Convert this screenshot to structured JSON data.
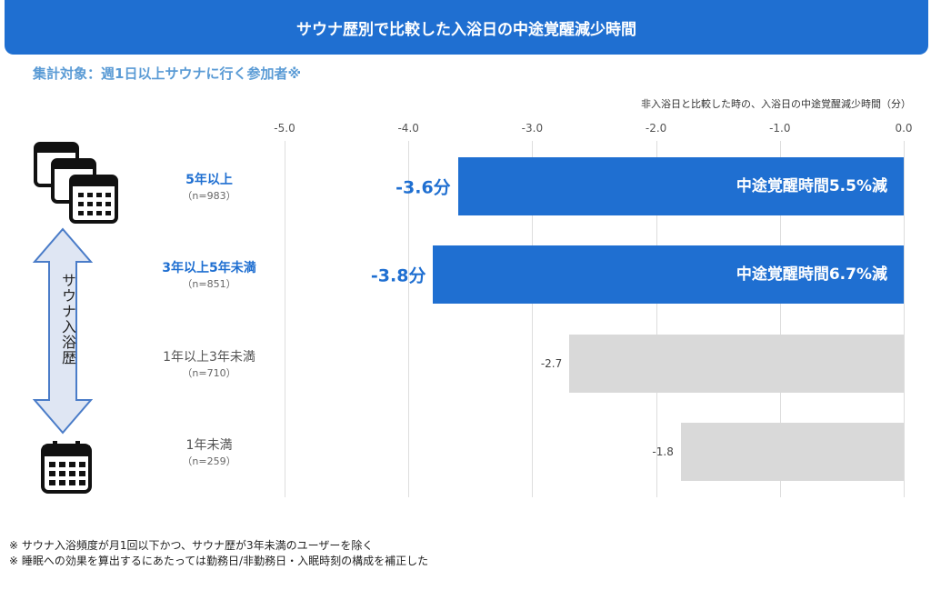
{
  "title": "サウナ歴別で比較した入浴日の中途覚醒減少時間",
  "subtitle": "集計対象：週1日以上サウナに行く参加者※",
  "arrow_label": "サウナ入浴歴",
  "notes": [
    "※ サウナ入浴頻度が月1回以下かつ、サウナ歴が3年未満のユーザーを除く",
    "※ 睡眠への効果を算出するにあたっては勤務日/非勤務日・入眠時刻の構成を補正した"
  ],
  "chart_data": {
    "type": "bar",
    "orientation": "horizontal",
    "unit_label": "非入浴日と比較した時の、入浴日の中途覚醒減少時間（分）",
    "xlim": [
      -5.0,
      0.0
    ],
    "ticks": [
      "-5.0",
      "-4.0",
      "-3.0",
      "-2.0",
      "-1.0",
      "0.0"
    ],
    "grid": true,
    "categories": [
      "5年以上",
      "3年以上5年未満",
      "1年以上3年未満",
      "1年未満"
    ],
    "sample_sizes": [
      "（n=983）",
      "（n=851）",
      "（n=710）",
      "（n=259）"
    ],
    "values": [
      -3.6,
      -3.8,
      -2.7,
      -1.8
    ],
    "value_labels": [
      "-3.6分",
      "-3.8分",
      "-2.7",
      "-1.8"
    ],
    "inner_labels": [
      "中途覚醒時間5.5%減",
      "中途覚醒時間6.7%減",
      "",
      ""
    ],
    "highlight": [
      true,
      true,
      false,
      false
    ],
    "colors": {
      "highlight": "#1f6fd1",
      "normal": "#d9d9d9"
    }
  }
}
